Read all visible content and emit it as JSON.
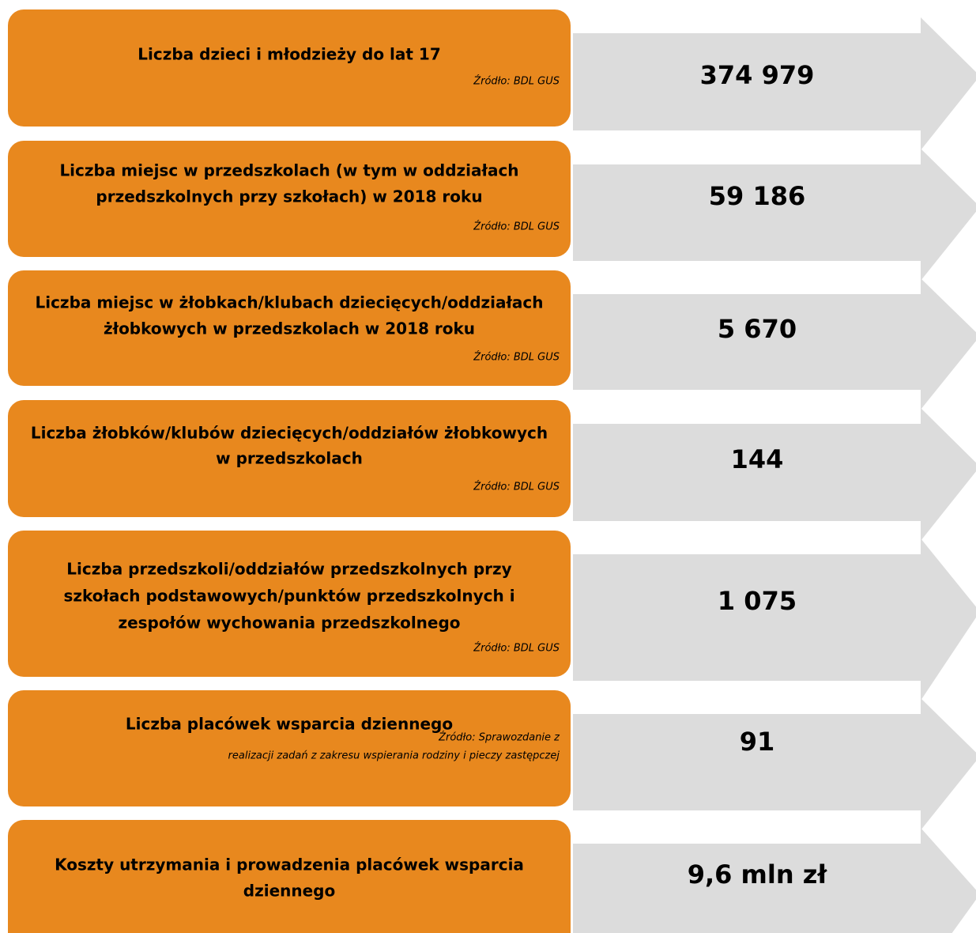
{
  "rows": [
    {
      "label": [
        "Liczba dzieci i młodzieży do lat 17"
      ],
      "source": [
        "Źródło: BDL GUS"
      ],
      "value": "374 979"
    },
    {
      "label": [
        "Liczba miejsc w przedszkolach (w tym w oddziałach",
        "przedszkolnych przy szkołach) w 2018 roku"
      ],
      "source": [
        "Źródło: BDL GUS"
      ],
      "value": "59 186"
    },
    {
      "label": [
        "Liczba miejsc w żłobkach/klubach dziecięcych/oddziałach",
        "żłobkowych w przedszkolach w 2018 roku"
      ],
      "source": [
        "Źródło: BDL GUS"
      ],
      "value": "5 670"
    },
    {
      "label": [
        "Liczba żłobków/klubów dziecięcych/oddziałów żłobkowych",
        "w przedszkolach"
      ],
      "source": [
        "Źródło: BDL GUS"
      ],
      "value": "144"
    },
    {
      "label": [
        "Liczba przedszkoli/oddziałów  przedszkolnych przy",
        "szkołach podstawowych/punktów przedszkolnych i",
        "zespołów wychowania przedszkolnego"
      ],
      "source": [
        "Źródło: BDL GUS"
      ],
      "value": "1 075"
    },
    {
      "label": [
        "Liczba placówek wsparcia dziennego"
      ],
      "source": [
        "Źródło: Sprawozdanie z",
        "realizacji zadań z zakresu wspierania rodziny i pieczy zastępczej"
      ],
      "value": "91"
    },
    {
      "label": [
        "Koszty utrzymania i prowadzenia placówek wsparcia",
        "dziennego"
      ],
      "source": [],
      "value": "9,6 mln zł"
    }
  ]
}
